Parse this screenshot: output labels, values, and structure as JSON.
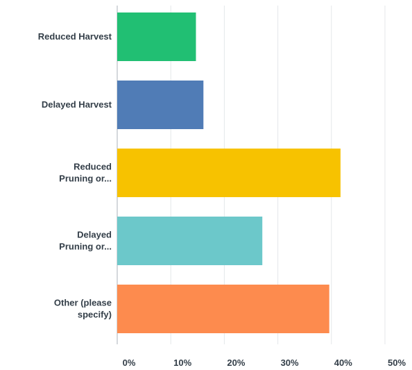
{
  "chart_data": {
    "type": "bar",
    "orientation": "horizontal",
    "categories": [
      [
        "Reduced Harvest"
      ],
      [
        "Delayed Harvest"
      ],
      [
        "Reduced",
        "Pruning or..."
      ],
      [
        "Delayed",
        "Pruning or..."
      ],
      [
        "Other (please",
        "specify)"
      ]
    ],
    "values": [
      14.7,
      16.1,
      41.7,
      27.1,
      39.6
    ],
    "colors": [
      "#21bf73",
      "#507cb6",
      "#f7c200",
      "#6cc8ca",
      "#fd8b4e"
    ],
    "xlim": [
      0,
      50
    ],
    "ticks": [
      0,
      10,
      20,
      30,
      40,
      50
    ],
    "tick_labels": [
      "0%",
      "10%",
      "20%",
      "30%",
      "40%",
      "50%"
    ],
    "grid": "vertical",
    "title": "",
    "xlabel": "",
    "ylabel": ""
  }
}
